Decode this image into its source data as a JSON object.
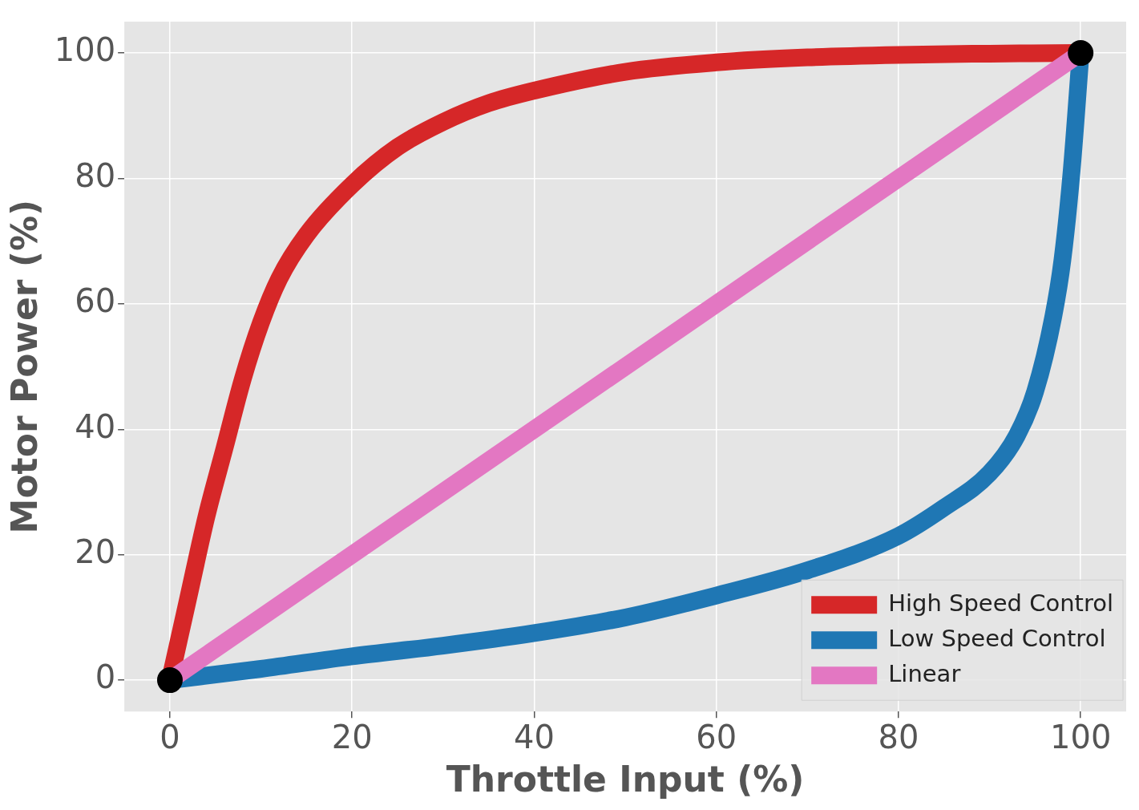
{
  "chart_data": {
    "type": "line",
    "xlabel": "Throttle Input (%)",
    "ylabel": "Motor Power (%)",
    "xlim": [
      -5,
      105
    ],
    "ylim": [
      -5,
      105
    ],
    "xticks": [
      0,
      20,
      40,
      60,
      80,
      100
    ],
    "yticks": [
      0,
      20,
      40,
      60,
      80,
      100
    ],
    "grid": true,
    "legend": "bottom right",
    "marker": "none",
    "line_style": "solid",
    "series": [
      {
        "name": "High Speed Control",
        "color": "#d62728",
        "x": [
          0,
          2,
          4,
          6,
          8,
          10,
          12,
          15,
          20,
          25,
          30,
          35,
          40,
          50,
          60,
          70,
          80,
          90,
          100
        ],
        "values": [
          0,
          13,
          26,
          37,
          48,
          57,
          64,
          71,
          79,
          85,
          89,
          92,
          94,
          97,
          98.5,
          99.3,
          99.7,
          99.9,
          100
        ]
      },
      {
        "name": "Low Speed Control",
        "color": "#1f77b4",
        "x": [
          0,
          10,
          20,
          30,
          40,
          50,
          60,
          70,
          80,
          85,
          90,
          93,
          95,
          97,
          98,
          99,
          100
        ],
        "values": [
          0,
          1.8,
          3.8,
          5.5,
          7.5,
          10,
          13.5,
          17.5,
          23,
          27.5,
          33,
          39,
          46,
          58,
          67,
          81,
          100
        ]
      },
      {
        "name": "Linear",
        "color": "#e377c2",
        "x": [
          0,
          100
        ],
        "values": [
          0,
          100
        ]
      },
      {
        "type": "scatter",
        "color": "#000000",
        "marker": "circle",
        "x": [
          0,
          100
        ],
        "values": [
          0,
          100
        ]
      }
    ]
  }
}
